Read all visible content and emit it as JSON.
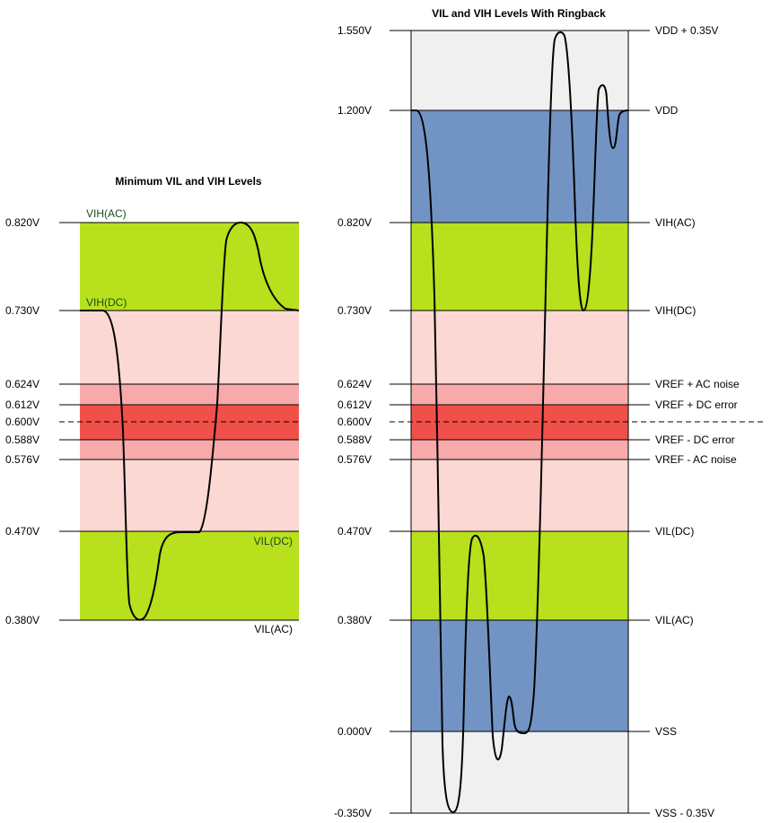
{
  "colors": {
    "green": "#b8e01c",
    "pink_light": "#fcd8d4",
    "pink_mid": "#f8aaaa",
    "red": "#f0504a",
    "blue": "#7294c4",
    "light_gray": "#f0f0f0",
    "black": "#000000"
  },
  "left": {
    "title": "Minimum VIL and VIH Levels",
    "levels": [
      {
        "voltage": 0.82,
        "label": "0.820V"
      },
      {
        "voltage": 0.73,
        "label": "0.730V"
      },
      {
        "voltage": 0.624,
        "label": "0.624V"
      },
      {
        "voltage": 0.612,
        "label": "0.612V"
      },
      {
        "voltage": 0.6,
        "label": "0.600V"
      },
      {
        "voltage": 0.588,
        "label": "0.588V"
      },
      {
        "voltage": 0.576,
        "label": "0.576V"
      },
      {
        "voltage": 0.47,
        "label": "0.470V"
      },
      {
        "voltage": 0.38,
        "label": "0.380V"
      }
    ],
    "signal_labels": {
      "vih_ac": "VIH(AC)",
      "vih_dc": "VIH(DC)",
      "vil_dc": "VIL(DC)",
      "vil_ac": "VIL(AC)"
    }
  },
  "right": {
    "title": "VIL and VIH Levels With Ringback",
    "levels": [
      {
        "voltage": 1.55,
        "label": "1.550V",
        "name": "VDD + 0.35V"
      },
      {
        "voltage": 1.2,
        "label": "1.200V",
        "name": "VDD"
      },
      {
        "voltage": 0.82,
        "label": "0.820V",
        "name": "VIH(AC)"
      },
      {
        "voltage": 0.73,
        "label": "0.730V",
        "name": "VIH(DC)"
      },
      {
        "voltage": 0.624,
        "label": "0.624V",
        "name": "VREF + AC noise"
      },
      {
        "voltage": 0.612,
        "label": "0.612V",
        "name": "VREF + DC error"
      },
      {
        "voltage": 0.6,
        "label": "0.600V",
        "name": ""
      },
      {
        "voltage": 0.588,
        "label": "0.588V",
        "name": "VREF - DC error"
      },
      {
        "voltage": 0.576,
        "label": "0.576V",
        "name": "VREF - AC noise"
      },
      {
        "voltage": 0.47,
        "label": "0.470V",
        "name": "VIL(DC)"
      },
      {
        "voltage": 0.38,
        "label": "0.380V",
        "name": "VIL(AC)"
      },
      {
        "voltage": 0.0,
        "label": "0.000V",
        "name": "VSS"
      },
      {
        "voltage": -0.35,
        "label": "-0.350V",
        "name": "VSS - 0.35V"
      }
    ]
  }
}
